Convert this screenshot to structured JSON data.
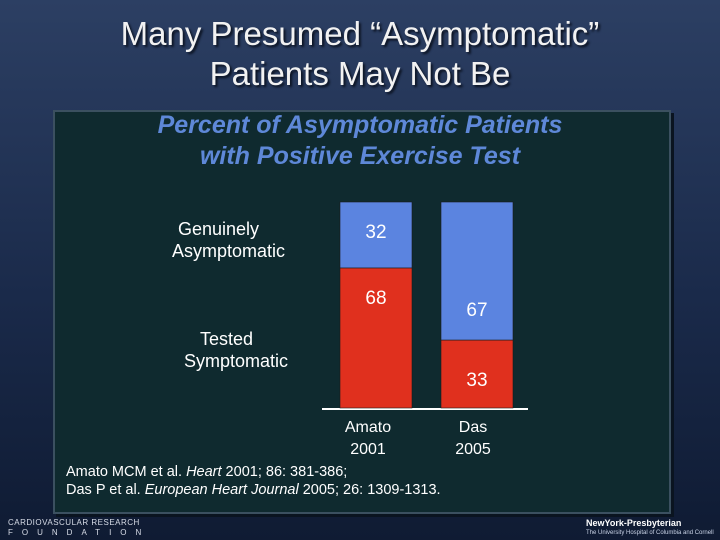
{
  "slide": {
    "title_line1": "Many Presumed “Asymptomatic”",
    "title_line2": "Patients May Not Be"
  },
  "chart_data": {
    "type": "bar",
    "stacked": true,
    "title_line1": "Percent of Asymptomatic Patients",
    "title_line2": "with Positive Exercise Test",
    "categories": [
      "Amato 2001",
      "Das 2005"
    ],
    "category_lines": [
      [
        "Amato",
        "2001"
      ],
      [
        "Das",
        "2005"
      ]
    ],
    "series": [
      {
        "name": "Tested Symptomatic",
        "name_lines": [
          "Tested",
          "Symptomatic"
        ],
        "color": "#e0301e",
        "values": [
          68,
          33
        ]
      },
      {
        "name": "Genuinely Asymptomatic",
        "name_lines": [
          "Genuinely",
          "Asymptomatic"
        ],
        "color": "#5b84e0",
        "values": [
          32,
          67
        ]
      }
    ],
    "ylim": [
      0,
      100
    ],
    "grid": false,
    "legend": "left"
  },
  "references": {
    "line1_prefix": "Amato MCM et al. ",
    "line1_journal": "Heart",
    "line1_suffix": " 2001; 86: 381-386;",
    "line2_prefix": "Das P et al. ",
    "line2_journal": "European Heart Journal",
    "line2_suffix": " 2005; 26: 1309-1313."
  },
  "footer": {
    "left_logo_line1": "CARDIOVASCULAR RESEARCH",
    "left_logo_line2": "FOUNDATION",
    "right_logo_line1": "NewYork-Presbyterian",
    "right_logo_line2": "The University Hospital of Columbia and Cornell"
  }
}
